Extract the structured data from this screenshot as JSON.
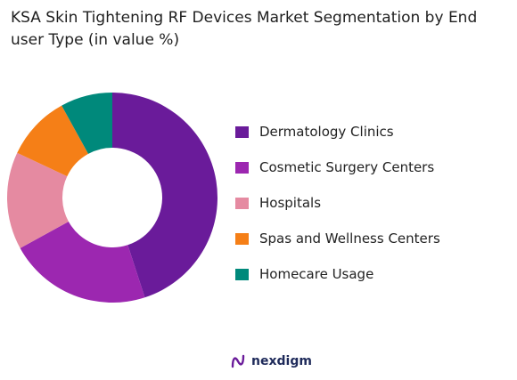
{
  "title": "KSA Skin Tightening RF Devices Market Segmentation by End user Type (in value %)",
  "chart_data": {
    "type": "pie",
    "donut": true,
    "legend_position": "right",
    "categories": [
      "Dermatology Clinics",
      "Cosmetic Surgery Centers",
      "Hospitals",
      "Spas and Wellness Centers",
      "Homecare Usage"
    ],
    "values": [
      45,
      22,
      15,
      10,
      8
    ],
    "colors": [
      "#6a1b9a",
      "#9c27b0",
      "#e58aa1",
      "#f57f17",
      "#00897b"
    ]
  },
  "brand": {
    "name": "nexdigm",
    "logo_icon": "nexdigm-logo-icon",
    "logo_color": "#6a1b9a"
  }
}
